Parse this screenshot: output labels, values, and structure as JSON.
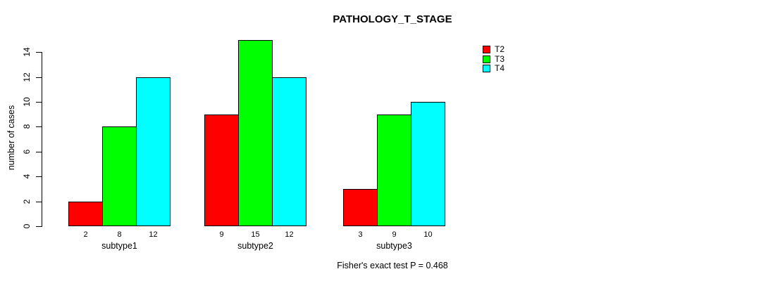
{
  "chart_data": {
    "type": "bar",
    "title": "PATHOLOGY_T_STAGE",
    "ylabel": "number of cases",
    "xlabel": "",
    "categories": [
      "subtype1",
      "subtype2",
      "subtype3"
    ],
    "series": [
      {
        "name": "T2",
        "color": "#ff0000",
        "values": [
          2,
          9,
          3
        ]
      },
      {
        "name": "T3",
        "color": "#00ff00",
        "values": [
          8,
          15,
          9
        ]
      },
      {
        "name": "T4",
        "color": "#00ffff",
        "values": [
          12,
          12,
          10
        ]
      }
    ],
    "bar_value_labels": [
      [
        "2",
        "8",
        "12"
      ],
      [
        "9",
        "15",
        "12"
      ],
      [
        "3",
        "9",
        "10"
      ]
    ],
    "yticks": [
      0,
      2,
      4,
      6,
      8,
      10,
      12,
      14
    ],
    "ylim": [
      0,
      15
    ],
    "grid": false,
    "legend_position": "top-right",
    "annotation": "Fisher's exact test P = 0.468",
    "colors": {
      "bar_border": "#000000",
      "axis": "#000000",
      "text": "#000000",
      "background": "#ffffff"
    }
  }
}
